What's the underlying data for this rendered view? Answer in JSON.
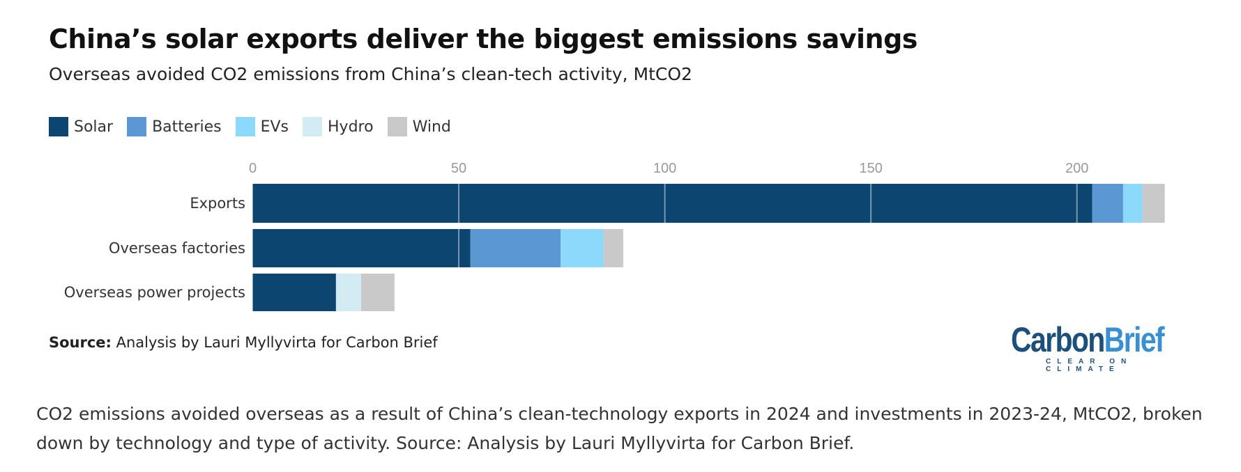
{
  "chart_data": {
    "type": "bar",
    "orientation": "horizontal",
    "stacked": true,
    "title": "China’s solar exports deliver the biggest emissions savings",
    "subtitle": "Overseas avoided CO2 emissions from China’s clean-tech activity, MtCO2",
    "categories": [
      "Exports",
      "Overseas factories",
      "Overseas power projects"
    ],
    "series": [
      {
        "name": "Solar",
        "color": "#0c4570",
        "values": [
          203.7,
          52.8,
          20.2
        ]
      },
      {
        "name": "Batteries",
        "color": "#5b97d3",
        "values": [
          7.5,
          21.9,
          0
        ]
      },
      {
        "name": "EVs",
        "color": "#8cd9fc",
        "values": [
          4.7,
          10.4,
          0
        ]
      },
      {
        "name": "Hydro",
        "color": "#d3ecf4",
        "values": [
          0,
          0,
          6.1
        ]
      },
      {
        "name": "Wind",
        "color": "#c9c9c9",
        "values": [
          5.4,
          4.8,
          8.1
        ]
      }
    ],
    "xticks": [
      "0",
      "50",
      "100",
      "150",
      "200"
    ],
    "xtick_values": [
      0,
      50,
      100,
      150,
      200
    ],
    "xlim": [
      0,
      221.3
    ],
    "xlabel": "",
    "ylabel": "",
    "grid": true,
    "legend_position": "top-left"
  },
  "source_label": "Source:",
  "source_text": " Analysis by Lauri Myllyvirta for Carbon Brief",
  "logo": {
    "word1": "Carbon",
    "word2": "Brief",
    "tagline": "CLEAR ON CLIMATE"
  },
  "caption": "CO2 emissions avoided overseas as a result of China’s clean-technology exports in 2024 and investments in 2023-24, MtCO2, broken down by technology and type of activity. Source: Analysis by Lauri Myllyvirta for Carbon Brief."
}
